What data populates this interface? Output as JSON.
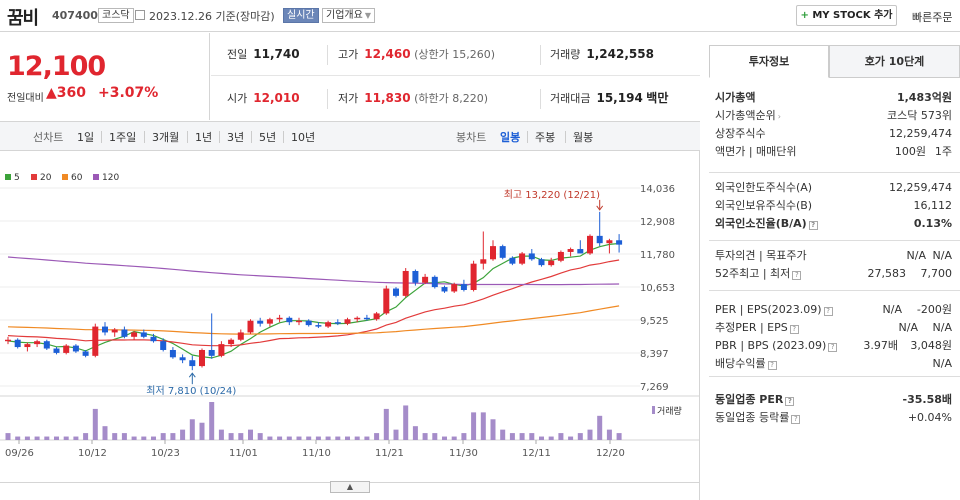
{
  "header": {
    "name": "꿈비",
    "code": "407400",
    "market": "코스닥",
    "date": "2023.12.26 기준(장마감)",
    "realtime": "실시간",
    "company": "기업개요",
    "mystock": "MY STOCK 추가",
    "quick": "빠른주문"
  },
  "price": {
    "current": "12,100",
    "change_label": "전일대비",
    "change": "360",
    "change_pct": "+3.07%"
  },
  "stats": {
    "prev_label": "전일",
    "prev": "11,740",
    "high_label": "고가",
    "high": "12,460",
    "upper": "(상한가 15,260)",
    "volume_label": "거래량",
    "volume": "1,242,558",
    "open_label": "시가",
    "open": "12,010",
    "low_label": "저가",
    "low": "11,830",
    "lower": "(하한가 8,220)",
    "amount_label": "거래대금",
    "amount": "15,194",
    "amount_unit": "백만"
  },
  "toolbar": {
    "line_label": "선차트",
    "periods": [
      "1일",
      "1주일",
      "3개월",
      "1년",
      "3년",
      "5년",
      "10년"
    ],
    "candle_label": "봉차트",
    "candles": [
      "일봉",
      "주봉",
      "월봉"
    ]
  },
  "legend": [
    {
      "label": "5",
      "color": "#3ca33a"
    },
    {
      "label": "20",
      "color": "#e23b3b"
    },
    {
      "label": "60",
      "color": "#f08a24"
    },
    {
      "label": "120",
      "color": "#9b59b6"
    }
  ],
  "chart_data": {
    "type": "candlestick",
    "y_ticks": [
      "14,036",
      "12,908",
      "11,780",
      "10,653",
      "9,525",
      "8,397",
      "7,269"
    ],
    "ylim": [
      7269,
      14036
    ],
    "x_ticks": [
      "09/26",
      "10/12",
      "10/23",
      "11/01",
      "11/10",
      "11/21",
      "11/30",
      "12/11",
      "12/20"
    ],
    "annotations": {
      "high": "최고 13,220 (12/21)",
      "low": "최저 7,810 (10/24)"
    },
    "volume_label": "거래량",
    "candles": [
      [
        8800,
        8950,
        8700,
        8850
      ],
      [
        8850,
        8900,
        8550,
        8600
      ],
      [
        8600,
        8750,
        8450,
        8700
      ],
      [
        8700,
        8850,
        8600,
        8800
      ],
      [
        8800,
        8850,
        8500,
        8550
      ],
      [
        8550,
        8600,
        8350,
        8400
      ],
      [
        8400,
        8700,
        8350,
        8650
      ],
      [
        8650,
        8700,
        8400,
        8450
      ],
      [
        8450,
        8500,
        8250,
        8300
      ],
      [
        8300,
        9400,
        8250,
        9300
      ],
      [
        9300,
        9450,
        9000,
        9100
      ],
      [
        9100,
        9250,
        8950,
        9200
      ],
      [
        9200,
        9300,
        8900,
        8950
      ],
      [
        8950,
        9150,
        8850,
        9100
      ],
      [
        9100,
        9200,
        8900,
        8950
      ],
      [
        8950,
        9050,
        8750,
        8800
      ],
      [
        8800,
        8900,
        8450,
        8500
      ],
      [
        8500,
        8600,
        8200,
        8250
      ],
      [
        8250,
        8350,
        8050,
        8150
      ],
      [
        8150,
        8300,
        7810,
        7950
      ],
      [
        7950,
        8550,
        7900,
        8500
      ],
      [
        8500,
        9750,
        8200,
        8300
      ],
      [
        8300,
        8800,
        8250,
        8700
      ],
      [
        8700,
        8900,
        8600,
        8850
      ],
      [
        8850,
        9200,
        8800,
        9100
      ],
      [
        9100,
        9550,
        9050,
        9500
      ],
      [
        9500,
        9600,
        9300,
        9400
      ],
      [
        9400,
        9600,
        9300,
        9550
      ],
      [
        9550,
        9700,
        9450,
        9600
      ],
      [
        9600,
        9650,
        9350,
        9450
      ],
      [
        9450,
        9600,
        9350,
        9500
      ],
      [
        9500,
        9550,
        9300,
        9350
      ],
      [
        9350,
        9450,
        9250,
        9300
      ],
      [
        9300,
        9500,
        9250,
        9450
      ],
      [
        9450,
        9550,
        9350,
        9400
      ],
      [
        9400,
        9600,
        9350,
        9550
      ],
      [
        9550,
        9650,
        9450,
        9600
      ],
      [
        9600,
        9700,
        9500,
        9550
      ],
      [
        9550,
        9800,
        9500,
        9750
      ],
      [
        9750,
        10700,
        9700,
        10600
      ],
      [
        10600,
        10650,
        10300,
        10350
      ],
      [
        10350,
        11300,
        10300,
        11200
      ],
      [
        11200,
        11250,
        10700,
        10800
      ],
      [
        10800,
        11100,
        10750,
        11000
      ],
      [
        11000,
        11050,
        10600,
        10650
      ],
      [
        10650,
        10700,
        10450,
        10500
      ],
      [
        10500,
        10800,
        10450,
        10750
      ],
      [
        10750,
        10900,
        10500,
        10550
      ],
      [
        10550,
        11550,
        10500,
        11450
      ],
      [
        11450,
        12550,
        11250,
        11600
      ],
      [
        11600,
        12250,
        11550,
        12050
      ],
      [
        12050,
        12100,
        11600,
        11650
      ],
      [
        11650,
        11700,
        11400,
        11450
      ],
      [
        11450,
        11850,
        11400,
        11800
      ],
      [
        11800,
        11950,
        11550,
        11600
      ],
      [
        11600,
        11650,
        11350,
        11400
      ],
      [
        11400,
        11650,
        11350,
        11550
      ],
      [
        11550,
        11900,
        11500,
        11850
      ],
      [
        11850,
        12000,
        11700,
        11950
      ],
      [
        11950,
        12250,
        11850,
        11800
      ],
      [
        11800,
        12450,
        11750,
        12400
      ],
      [
        12400,
        13220,
        12050,
        12150
      ],
      [
        12150,
        12300,
        11800,
        12250
      ],
      [
        12250,
        12460,
        11830,
        12100
      ]
    ],
    "volumes": [
      2,
      1,
      1,
      1,
      1,
      1,
      1,
      1,
      2,
      9,
      4,
      2,
      2,
      1,
      1,
      1,
      2,
      2,
      3,
      6,
      5,
      11,
      3,
      2,
      2,
      3,
      2,
      1,
      1,
      1,
      1,
      1,
      1,
      1,
      1,
      1,
      1,
      1,
      2,
      9,
      3,
      10,
      4,
      2,
      2,
      1,
      1,
      2,
      8,
      8,
      6,
      3,
      2,
      2,
      2,
      1,
      1,
      2,
      1,
      2,
      3,
      7,
      3,
      2
    ]
  },
  "sidebar": {
    "tab_active": "투자정보",
    "tab_other": "호가 10단계",
    "g1": [
      {
        "k": "시가총액",
        "v": "1,483억원"
      },
      {
        "k": "시가총액순위",
        "v": "코스닥 573위"
      },
      {
        "k": "상장주식수",
        "v": "12,259,474"
      },
      {
        "k": "액면가 | 매매단위",
        "v2": "100원",
        "v": "1주"
      }
    ],
    "g2": [
      {
        "k": "외국인한도주식수(A)",
        "v": "12,259,474"
      },
      {
        "k": "외국인보유주식수(B)",
        "v": "16,112"
      },
      {
        "k": "외국인소진율(B/A)",
        "v": "0.13%"
      }
    ],
    "g3": [
      {
        "k": "투자의견 | 목표주가",
        "v2": "N/A",
        "v": "N/A"
      },
      {
        "k": "52주최고 | 최저",
        "v2": "27,583",
        "v": "7,700"
      }
    ],
    "g4": [
      {
        "k": "PER | EPS(2023.09)",
        "v2": "N/A",
        "v": "-200원"
      },
      {
        "k": "추정PER | EPS",
        "v2": "N/A",
        "v": "N/A"
      },
      {
        "k": "PBR | BPS (2023.09)",
        "v2": "3.97배",
        "v": "3,048원"
      },
      {
        "k": "배당수익률",
        "v": "N/A"
      }
    ],
    "g5": [
      {
        "k": "동일업종 PER",
        "v": "-35.58배"
      },
      {
        "k": "동일업종 등락률",
        "v": "+0.04%"
      }
    ]
  }
}
